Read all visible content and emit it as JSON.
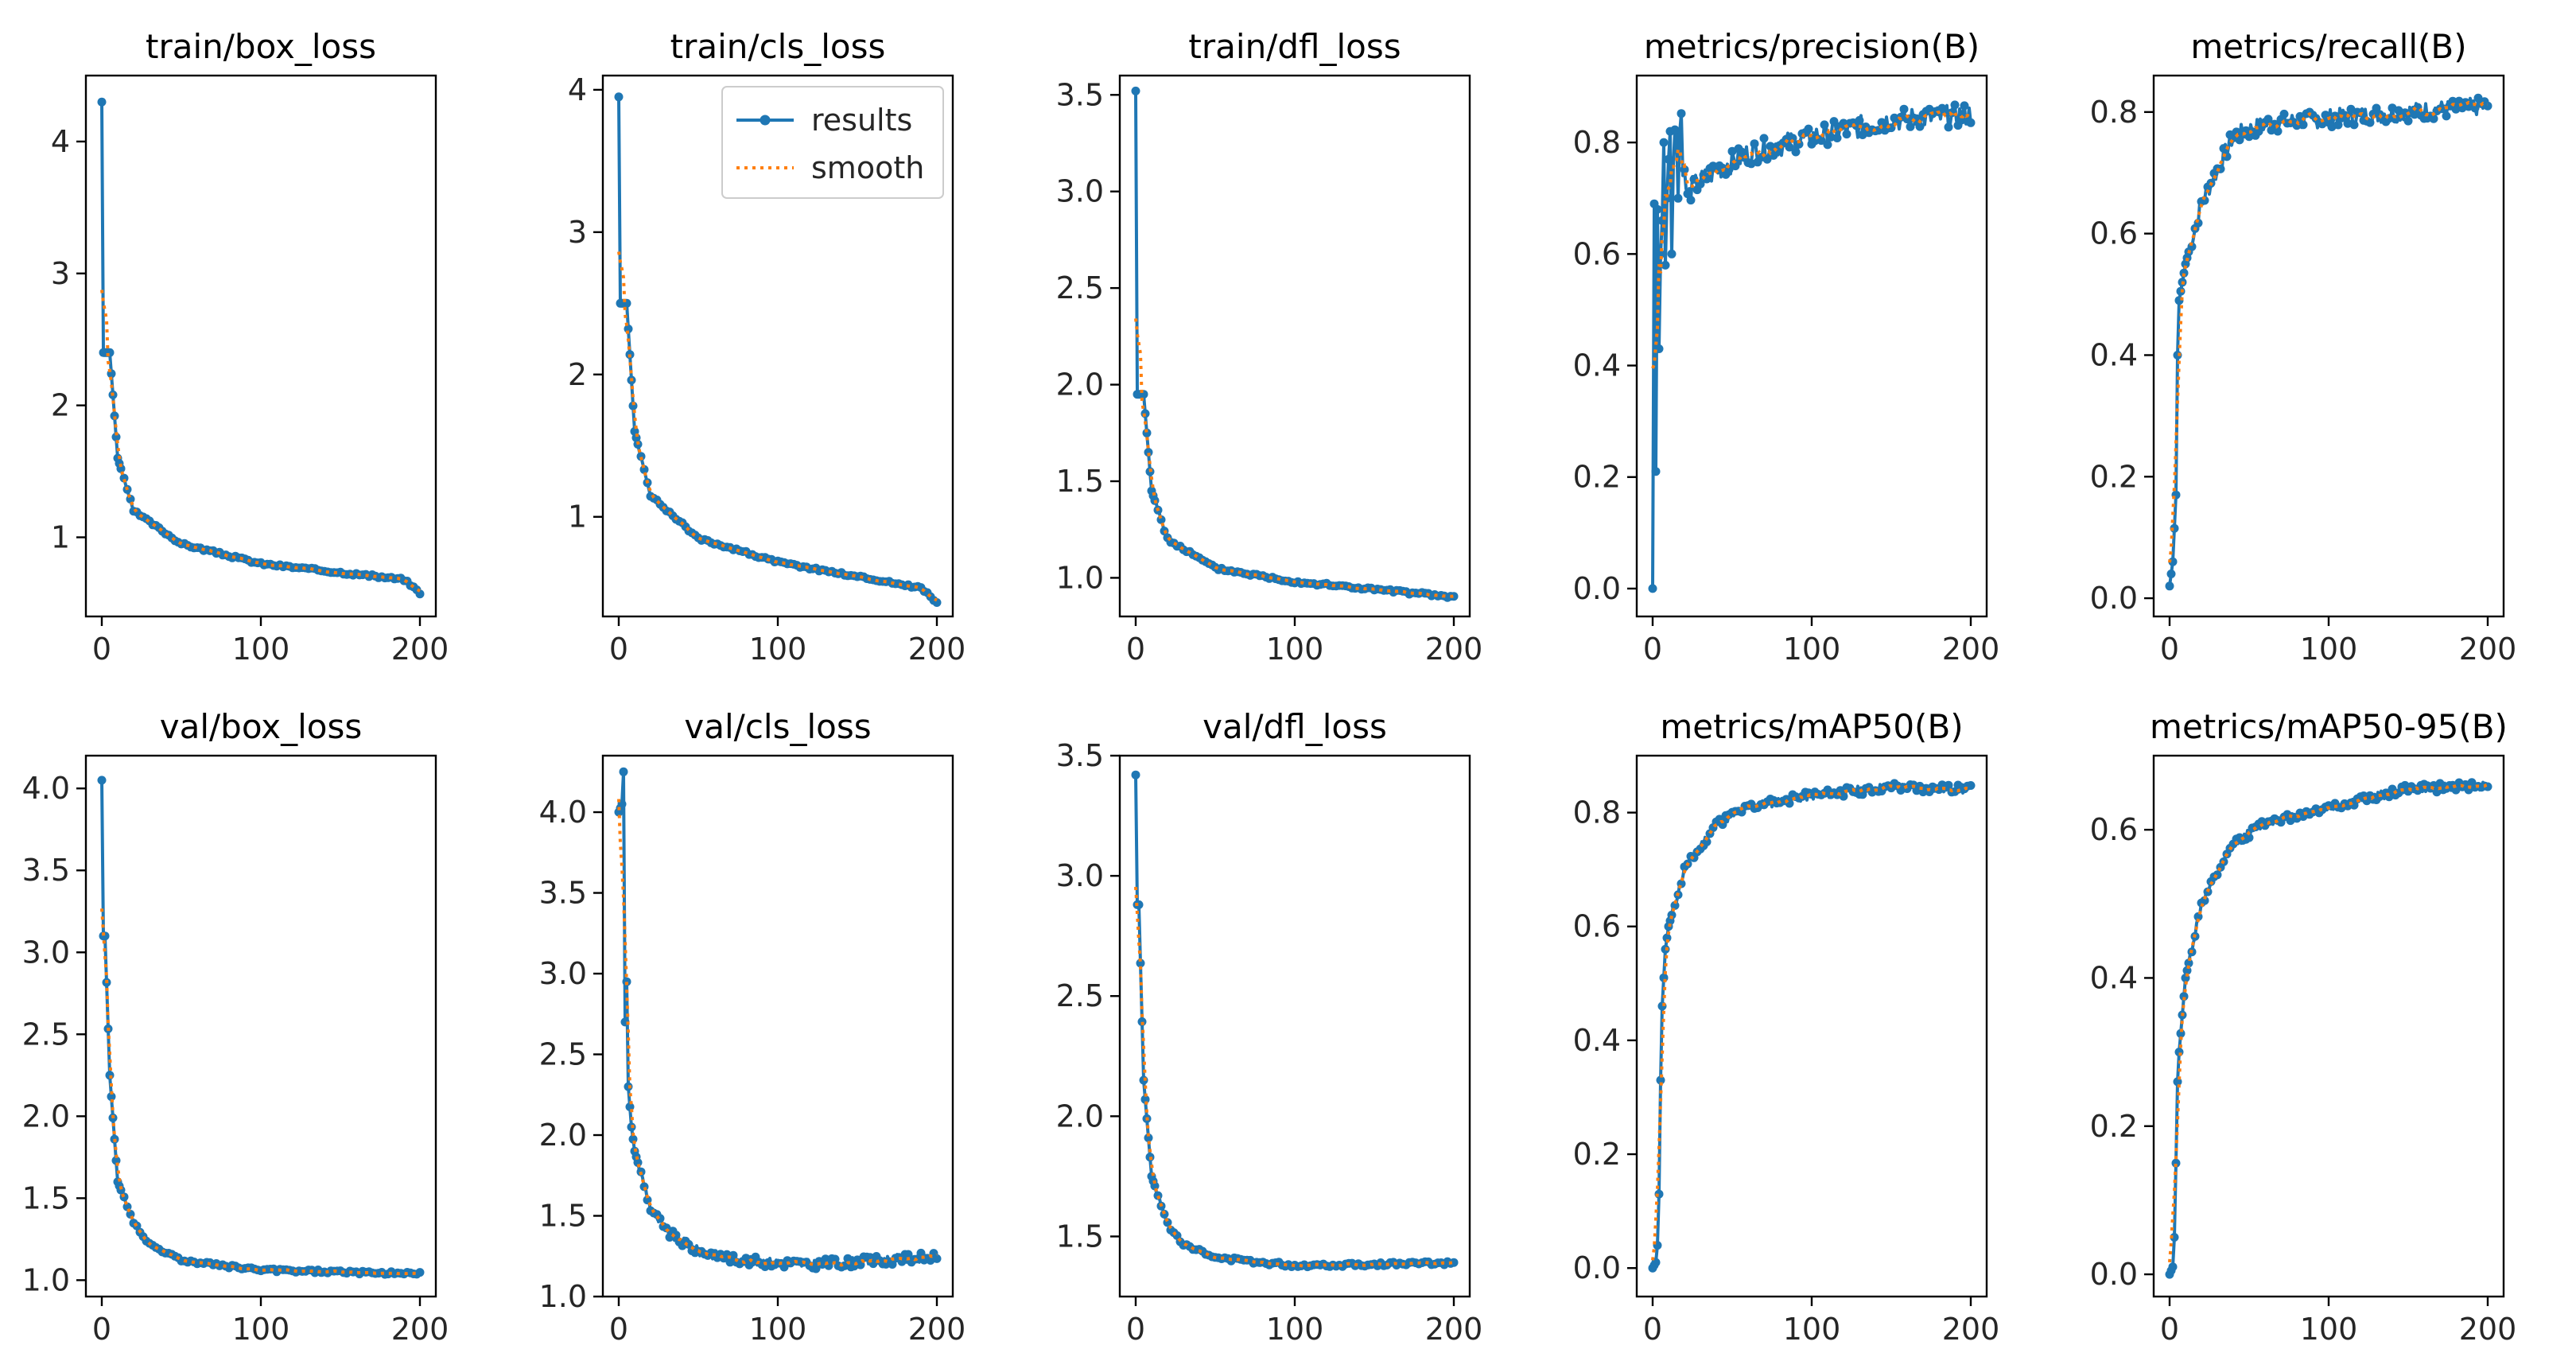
{
  "figure": {
    "background": "#ffffff"
  },
  "colors": {
    "results": "#1f77b4",
    "smooth": "#ff7f0e"
  },
  "legend": {
    "results_label": "results",
    "smooth_label": "smooth"
  },
  "chart_data": [
    {
      "type": "line",
      "title": "train/box_loss",
      "xlim": [
        -10,
        210
      ],
      "ylim": [
        0.4,
        4.5
      ],
      "xticks": [
        0,
        100,
        200
      ],
      "yticks": [
        1,
        2,
        3,
        4
      ],
      "ytick_labels": [
        "1",
        "2",
        "3",
        "4"
      ],
      "curve": {
        "kind": "decay",
        "start": 4.3,
        "pts": [
          [
            5,
            2.4
          ],
          [
            10,
            1.6
          ],
          [
            20,
            1.2
          ],
          [
            50,
            0.95
          ],
          [
            100,
            0.8
          ],
          [
            190,
            0.68
          ],
          [
            200,
            0.58
          ]
        ],
        "noise": 0.01
      }
    },
    {
      "type": "line",
      "title": "train/cls_loss",
      "xlim": [
        -10,
        210
      ],
      "ylim": [
        0.3,
        4.1
      ],
      "xticks": [
        0,
        100,
        200
      ],
      "yticks": [
        1,
        2,
        3,
        4
      ],
      "ytick_labels": [
        "1",
        "2",
        "3",
        "4"
      ],
      "legend": true,
      "curve": {
        "kind": "decay",
        "start": 3.95,
        "pts": [
          [
            5,
            2.5
          ],
          [
            10,
            1.6
          ],
          [
            20,
            1.15
          ],
          [
            50,
            0.85
          ],
          [
            100,
            0.68
          ],
          [
            190,
            0.5
          ],
          [
            200,
            0.4
          ]
        ],
        "noise": 0.01
      }
    },
    {
      "type": "line",
      "title": "train/dfl_loss",
      "xlim": [
        -10,
        210
      ],
      "ylim": [
        0.8,
        3.6
      ],
      "xticks": [
        0,
        100,
        200
      ],
      "yticks": [
        1.0,
        1.5,
        2.0,
        2.5,
        3.0,
        3.5
      ],
      "ytick_labels": [
        "1.0",
        "1.5",
        "2.0",
        "2.5",
        "3.0",
        "3.5"
      ],
      "curve": {
        "kind": "decay",
        "start": 3.52,
        "pts": [
          [
            5,
            1.95
          ],
          [
            10,
            1.45
          ],
          [
            20,
            1.2
          ],
          [
            50,
            1.05
          ],
          [
            100,
            0.98
          ],
          [
            200,
            0.9
          ]
        ],
        "noise": 0.008
      }
    },
    {
      "type": "line",
      "title": "metrics/precision(B)",
      "xlim": [
        -10,
        210
      ],
      "ylim": [
        -0.05,
        0.92
      ],
      "xticks": [
        0,
        100,
        200
      ],
      "yticks": [
        0.0,
        0.2,
        0.4,
        0.6,
        0.8
      ],
      "ytick_labels": [
        "0.0",
        "0.2",
        "0.4",
        "0.6",
        "0.8"
      ],
      "curve": {
        "kind": "explicit",
        "head": [
          [
            0,
            0.0
          ],
          [
            1,
            0.69
          ],
          [
            2,
            0.21
          ],
          [
            3,
            0.68
          ],
          [
            4,
            0.43
          ],
          [
            5,
            0.6
          ],
          [
            6,
            0.66
          ],
          [
            7,
            0.8
          ],
          [
            8,
            0.58
          ],
          [
            9,
            0.7
          ],
          [
            10,
            0.77
          ],
          [
            11,
            0.82
          ],
          [
            12,
            0.6
          ],
          [
            13,
            0.75
          ],
          [
            14,
            0.83
          ],
          [
            15,
            0.84
          ],
          [
            16,
            0.7
          ],
          [
            17,
            0.82
          ],
          [
            18,
            0.85
          ],
          [
            19,
            0.76
          ],
          [
            20,
            0.74
          ],
          [
            22,
            0.7
          ],
          [
            25,
            0.72
          ],
          [
            30,
            0.73
          ],
          [
            40,
            0.75
          ]
        ],
        "pts": [
          [
            40,
            0.75
          ],
          [
            60,
            0.78
          ],
          [
            100,
            0.81
          ],
          [
            150,
            0.84
          ],
          [
            200,
            0.85
          ]
        ],
        "noise": 0.02
      }
    },
    {
      "type": "line",
      "title": "metrics/recall(B)",
      "xlim": [
        -10,
        210
      ],
      "ylim": [
        -0.03,
        0.86
      ],
      "xticks": [
        0,
        100,
        200
      ],
      "yticks": [
        0.0,
        0.2,
        0.4,
        0.6,
        0.8
      ],
      "ytick_labels": [
        "0.0",
        "0.2",
        "0.4",
        "0.6",
        "0.8"
      ],
      "curve": {
        "kind": "explicit",
        "head": [
          [
            0,
            0.02
          ],
          [
            2,
            0.06
          ],
          [
            4,
            0.17
          ],
          [
            5,
            0.4
          ],
          [
            6,
            0.49
          ],
          [
            8,
            0.52
          ],
          [
            10,
            0.55
          ]
        ],
        "pts": [
          [
            10,
            0.55
          ],
          [
            20,
            0.65
          ],
          [
            40,
            0.76
          ],
          [
            60,
            0.78
          ],
          [
            100,
            0.79
          ],
          [
            150,
            0.8
          ],
          [
            200,
            0.81
          ]
        ],
        "noise": 0.015
      }
    },
    {
      "type": "line",
      "title": "val/box_loss",
      "xlim": [
        -10,
        210
      ],
      "ylim": [
        0.9,
        4.2
      ],
      "xticks": [
        0,
        100,
        200
      ],
      "yticks": [
        1.0,
        1.5,
        2.0,
        2.5,
        3.0,
        3.5,
        4.0
      ],
      "ytick_labels": [
        "1.0",
        "1.5",
        "2.0",
        "2.5",
        "3.0",
        "3.5",
        "4.0"
      ],
      "curve": {
        "kind": "decay",
        "start": 4.05,
        "pts": [
          [
            2,
            3.1
          ],
          [
            5,
            2.25
          ],
          [
            10,
            1.6
          ],
          [
            20,
            1.35
          ],
          [
            30,
            1.22
          ],
          [
            50,
            1.12
          ],
          [
            100,
            1.06
          ],
          [
            200,
            1.04
          ]
        ],
        "noise": 0.01
      }
    },
    {
      "type": "line",
      "title": "val/cls_loss",
      "xlim": [
        -10,
        210
      ],
      "ylim": [
        1.0,
        4.35
      ],
      "xticks": [
        0,
        100,
        200
      ],
      "yticks": [
        1.0,
        1.5,
        2.0,
        2.5,
        3.0,
        3.5,
        4.0
      ],
      "ytick_labels": [
        "1.0",
        "1.5",
        "2.0",
        "2.5",
        "3.0",
        "3.5",
        "4.0"
      ],
      "curve": {
        "kind": "explicit",
        "head": [
          [
            0,
            4.0
          ],
          [
            2,
            4.05
          ],
          [
            3,
            4.25
          ],
          [
            4,
            2.7
          ],
          [
            5,
            2.95
          ],
          [
            6,
            2.3
          ],
          [
            8,
            2.05
          ],
          [
            10,
            1.9
          ]
        ],
        "pts": [
          [
            10,
            1.9
          ],
          [
            20,
            1.55
          ],
          [
            30,
            1.4
          ],
          [
            50,
            1.28
          ],
          [
            80,
            1.22
          ],
          [
            120,
            1.2
          ],
          [
            160,
            1.22
          ],
          [
            200,
            1.25
          ]
        ],
        "noise": 0.03
      }
    },
    {
      "type": "line",
      "title": "val/dfl_loss",
      "xlim": [
        -10,
        210
      ],
      "ylim": [
        1.25,
        3.5
      ],
      "xticks": [
        0,
        100,
        200
      ],
      "yticks": [
        1.5,
        2.0,
        2.5,
        3.0,
        3.5
      ],
      "ytick_labels": [
        "1.5",
        "2.0",
        "2.5",
        "3.0",
        "3.5"
      ],
      "curve": {
        "kind": "decay",
        "start": 3.42,
        "pts": [
          [
            2,
            2.88
          ],
          [
            5,
            2.15
          ],
          [
            10,
            1.75
          ],
          [
            20,
            1.55
          ],
          [
            30,
            1.47
          ],
          [
            50,
            1.41
          ],
          [
            100,
            1.38
          ],
          [
            200,
            1.39
          ]
        ],
        "noise": 0.008
      }
    },
    {
      "type": "line",
      "title": "metrics/mAP50(B)",
      "xlim": [
        -10,
        210
      ],
      "ylim": [
        -0.05,
        0.9
      ],
      "xticks": [
        0,
        100,
        200
      ],
      "yticks": [
        0.0,
        0.2,
        0.4,
        0.6,
        0.8
      ],
      "ytick_labels": [
        "0.0",
        "0.2",
        "0.4",
        "0.6",
        "0.8"
      ],
      "curve": {
        "kind": "explicit",
        "head": [
          [
            0,
            0.0
          ],
          [
            2,
            0.01
          ],
          [
            3,
            0.04
          ],
          [
            4,
            0.13
          ],
          [
            5,
            0.33
          ],
          [
            6,
            0.46
          ],
          [
            8,
            0.56
          ],
          [
            10,
            0.6
          ]
        ],
        "pts": [
          [
            10,
            0.6
          ],
          [
            20,
            0.7
          ],
          [
            40,
            0.78
          ],
          [
            60,
            0.81
          ],
          [
            100,
            0.83
          ],
          [
            150,
            0.845
          ],
          [
            200,
            0.84
          ]
        ],
        "noise": 0.008
      }
    },
    {
      "type": "line",
      "title": "metrics/mAP50-95(B)",
      "xlim": [
        -10,
        210
      ],
      "ylim": [
        -0.03,
        0.7
      ],
      "xticks": [
        0,
        100,
        200
      ],
      "yticks": [
        0.0,
        0.2,
        0.4,
        0.6
      ],
      "ytick_labels": [
        "0.0",
        "0.2",
        "0.4",
        "0.6"
      ],
      "curve": {
        "kind": "explicit",
        "head": [
          [
            0,
            0.0
          ],
          [
            2,
            0.01
          ],
          [
            3,
            0.05
          ],
          [
            4,
            0.15
          ],
          [
            5,
            0.26
          ],
          [
            6,
            0.3
          ],
          [
            8,
            0.35
          ],
          [
            10,
            0.4
          ]
        ],
        "pts": [
          [
            10,
            0.4
          ],
          [
            20,
            0.5
          ],
          [
            40,
            0.58
          ],
          [
            60,
            0.61
          ],
          [
            100,
            0.63
          ],
          [
            150,
            0.655
          ],
          [
            200,
            0.66
          ]
        ],
        "noise": 0.006
      }
    }
  ]
}
